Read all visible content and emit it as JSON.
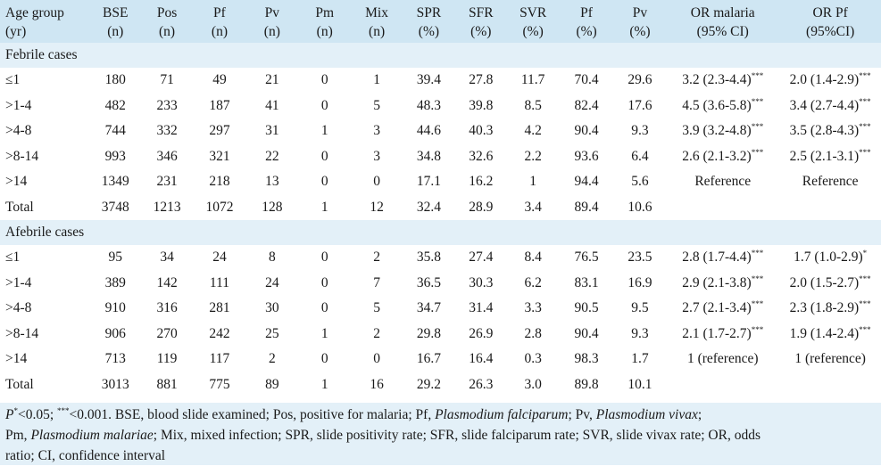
{
  "headers": [
    [
      "Age group",
      "(yr)"
    ],
    [
      "BSE",
      "(n)"
    ],
    [
      "Pos",
      "(n)"
    ],
    [
      "Pf",
      "(n)"
    ],
    [
      "Pv",
      "(n)"
    ],
    [
      "Pm",
      "(n)"
    ],
    [
      "Mix",
      "(n)"
    ],
    [
      "SPR",
      "(%)"
    ],
    [
      "SFR",
      "(%)"
    ],
    [
      "SVR",
      "(%)"
    ],
    [
      "Pf",
      "(%)"
    ],
    [
      "Pv",
      "(%)"
    ],
    [
      "OR malaria",
      "(95% CI)"
    ],
    [
      "OR Pf",
      "(95%CI)"
    ]
  ],
  "sections": [
    {
      "title": "Febrile cases",
      "rows": [
        {
          "age": "≤1",
          "vals": [
            "180",
            "71",
            "49",
            "21",
            "0",
            "1",
            "39.4",
            "27.8",
            "11.7",
            "70.4",
            "29.6"
          ],
          "or1": "3.2 (2.3-4.4)",
          "or1_sup": "***",
          "or2": "2.0 (1.4-2.9)",
          "or2_sup": "***"
        },
        {
          "age": ">1-4",
          "vals": [
            "482",
            "233",
            "187",
            "41",
            "0",
            "5",
            "48.3",
            "39.8",
            "8.5",
            "82.4",
            "17.6"
          ],
          "or1": "4.5 (3.6-5.8)",
          "or1_sup": "***",
          "or2": "3.4 (2.7-4.4)",
          "or2_sup": "***"
        },
        {
          "age": ">4-8",
          "vals": [
            "744",
            "332",
            "297",
            "31",
            "1",
            "3",
            "44.6",
            "40.3",
            "4.2",
            "90.4",
            "9.3"
          ],
          "or1": "3.9 (3.2-4.8)",
          "or1_sup": "***",
          "or2": "3.5 (2.8-4.3)",
          "or2_sup": "***"
        },
        {
          "age": ">8-14",
          "vals": [
            "993",
            "346",
            "321",
            "22",
            "0",
            "3",
            "34.8",
            "32.6",
            "2.2",
            "93.6",
            "6.4"
          ],
          "or1": "2.6 (2.1-3.2)",
          "or1_sup": "***",
          "or2": "2.5 (2.1-3.1)",
          "or2_sup": "***"
        },
        {
          "age": ">14",
          "vals": [
            "1349",
            "231",
            "218",
            "13",
            "0",
            "0",
            "17.1",
            "16.2",
            "1",
            "94.4",
            "5.6"
          ],
          "or1": "Reference",
          "or1_sup": "",
          "or2": "Reference",
          "or2_sup": ""
        },
        {
          "age": "Total",
          "vals": [
            "3748",
            "1213",
            "1072",
            "128",
            "1",
            "12",
            "32.4",
            "28.9",
            "3.4",
            "89.4",
            "10.6"
          ],
          "or1": "",
          "or1_sup": "",
          "or2": "",
          "or2_sup": ""
        }
      ]
    },
    {
      "title": "Afebrile cases",
      "rows": [
        {
          "age": "≤1",
          "vals": [
            "95",
            "34",
            "24",
            "8",
            "0",
            "2",
            "35.8",
            "27.4",
            "8.4",
            "76.5",
            "23.5"
          ],
          "or1": "2.8 (1.7-4.4)",
          "or1_sup": "***",
          "or2": "1.7 (1.0-2.9)",
          "or2_sup": "*"
        },
        {
          "age": ">1-4",
          "vals": [
            "389",
            "142",
            "111",
            "24",
            "0",
            "7",
            "36.5",
            "30.3",
            "6.2",
            "83.1",
            "16.9"
          ],
          "or1": "2.9 (2.1-3.8)",
          "or1_sup": "***",
          "or2": "2.0 (1.5-2.7)",
          "or2_sup": "***"
        },
        {
          "age": ">4-8",
          "vals": [
            "910",
            "316",
            "281",
            "30",
            "0",
            "5",
            "34.7",
            "31.4",
            "3.3",
            "90.5",
            "9.5"
          ],
          "or1": "2.7 (2.1-3.4)",
          "or1_sup": "***",
          "or2": "2.3 (1.8-2.9)",
          "or2_sup": "***"
        },
        {
          "age": ">8-14",
          "vals": [
            "906",
            "270",
            "242",
            "25",
            "1",
            "2",
            "29.8",
            "26.9",
            "2.8",
            "90.4",
            "9.3"
          ],
          "or1": "2.1 (1.7-2.7)",
          "or1_sup": "***",
          "or2": "1.9 (1.4-2.4)",
          "or2_sup": "***"
        },
        {
          "age": ">14",
          "vals": [
            "713",
            "119",
            "117",
            "2",
            "0",
            "0",
            "16.7",
            "16.4",
            "0.3",
            "98.3",
            "1.7"
          ],
          "or1": "1 (reference)",
          "or1_sup": "",
          "or2": "1 (reference)",
          "or2_sup": ""
        },
        {
          "age": "Total",
          "vals": [
            "3013",
            "881",
            "775",
            "89",
            "1",
            "16",
            "29.2",
            "26.3",
            "3.0",
            "89.8",
            "10.1"
          ],
          "or1": "",
          "or1_sup": "",
          "or2": "",
          "or2_sup": ""
        }
      ]
    }
  ],
  "footnote": {
    "p_symbol": "P",
    "p_sup": "*",
    "p_rest": "<0.05; ",
    "p3_sup": "***",
    "p3_rest": "<0.001. BSE, blood slide examined; Pos, positive for malaria; Pf, ",
    "pf_name": "Plasmodium falciparum",
    "pv_prefix": "; Pv, ",
    "pv_name": "Plasmodium vivax",
    "pm_prefix": ";",
    "pm_line": "Pm, ",
    "pm_name": "Plasmodium malariae",
    "rest_line2": "; Mix, mixed infection; SPR, slide positivity rate; SFR, slide falciparum rate; SVR, slide vivax rate; OR, odds",
    "rest_line3": "ratio; CI, confidence interval"
  }
}
